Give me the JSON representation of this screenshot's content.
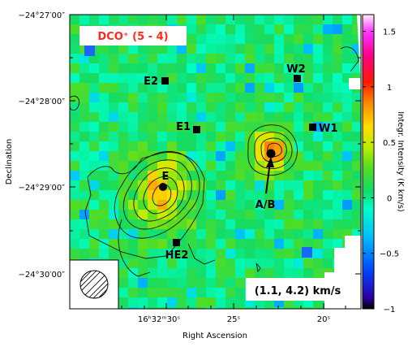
{
  "chart_data": {
    "type": "heatmap",
    "title": "DCO⁺ (5 - 4)",
    "velocity_range": "(1.1, 4.2) km/s",
    "xlabel": "Right Ascension",
    "ylabel": "Declination",
    "colorbar_label": "Integr. Intensity (K km/s)",
    "colorbar_range": [
      -1.0,
      1.65
    ],
    "colorbar_ticks": [
      "−1",
      "−0.5",
      "0",
      "0.5",
      "1",
      "1.5"
    ],
    "colorbar_tick_values": [
      -1,
      -0.5,
      0,
      0.5,
      1,
      1.5
    ],
    "x_ticks": [
      "16ʰ32ᵐ30ˢ",
      "25ˢ",
      "20ˢ"
    ],
    "y_ticks": [
      "−24°27′00″",
      "−24°28′00″",
      "−24°29′00″",
      "−24°30′00″"
    ],
    "sources": [
      {
        "label": "E2",
        "marker": "square"
      },
      {
        "label": "E1",
        "marker": "square"
      },
      {
        "label": "W2",
        "marker": "square"
      },
      {
        "label": "W1",
        "marker": "square"
      },
      {
        "label": "E",
        "marker": "circle"
      },
      {
        "label": "A/B",
        "marker": "circle"
      },
      {
        "label": "HE2",
        "marker": "square"
      }
    ],
    "peaks": [
      {
        "name": "E",
        "intensity": 0.55
      },
      {
        "name": "A/B",
        "intensity": 0.6
      }
    ],
    "beam": "hatched-circle"
  },
  "colors": {
    "title_red": "#ff2a1a",
    "background_green": "#33cc33"
  }
}
